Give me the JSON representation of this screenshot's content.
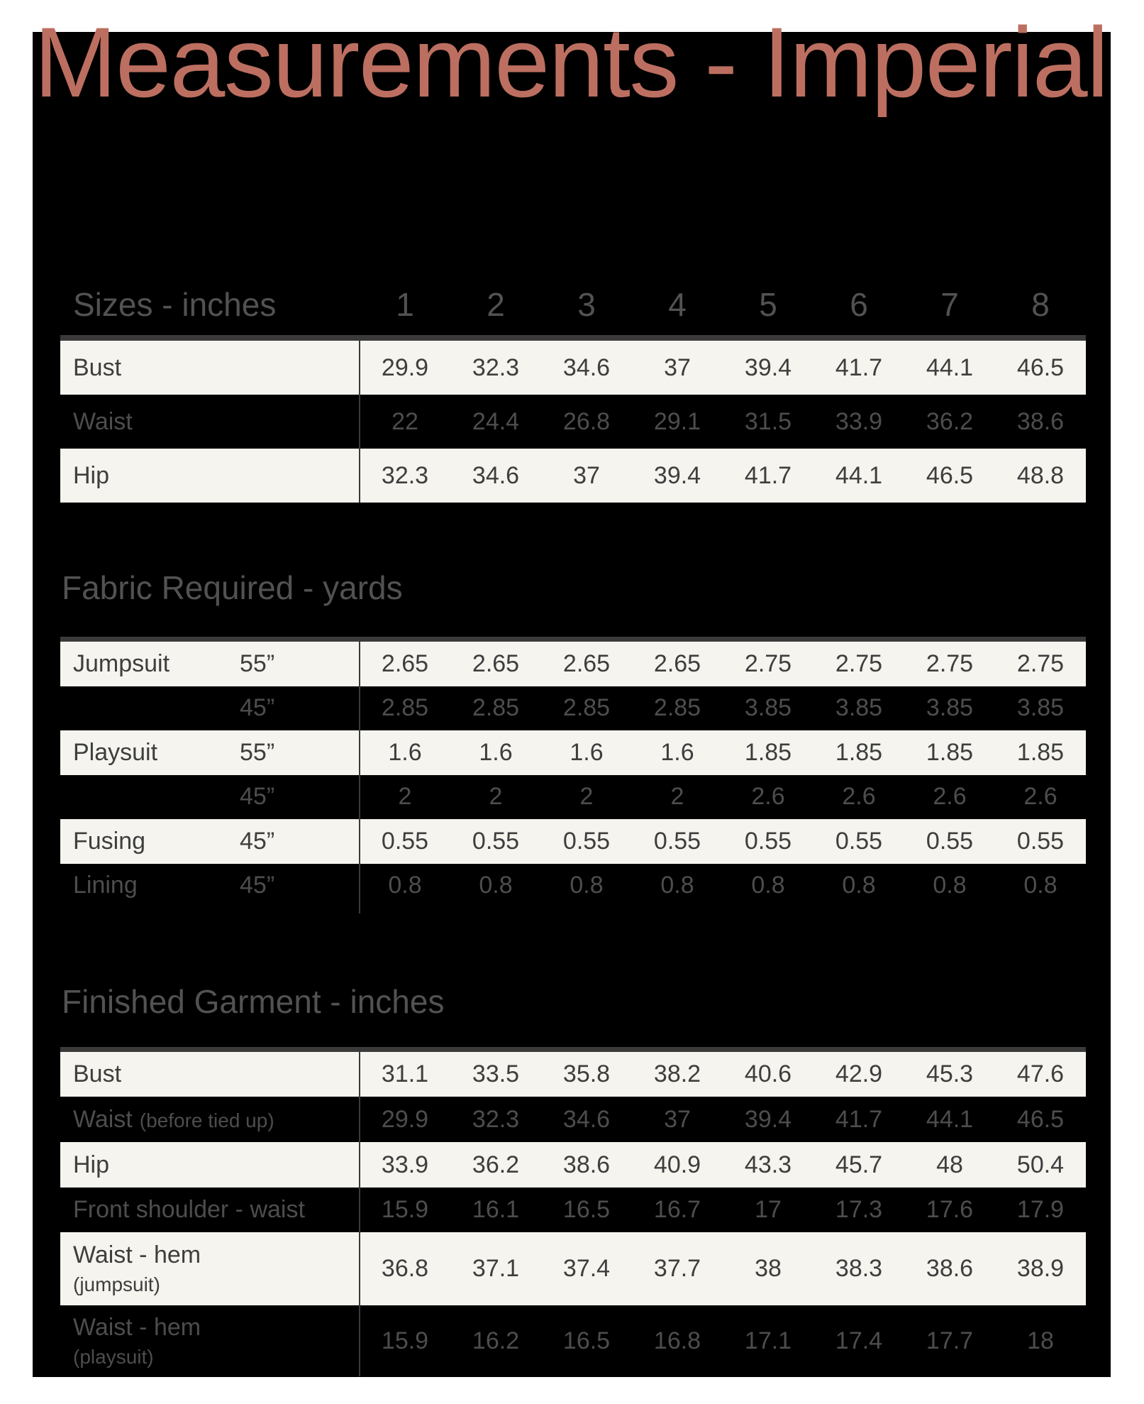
{
  "title": "Measurements - Imperial",
  "colors": {
    "title_accent": "#bc6f60",
    "board_background": "#000000",
    "page_margin": "#ffffff",
    "row_light_background": "#f5f4ee",
    "divider": "#3a3a3a",
    "text_on_light": "#3e3e3e",
    "text_on_dark": "#4d4d4d",
    "heading_text": "#525252"
  },
  "sizes_table": {
    "heading": "Sizes - inches",
    "size_columns": [
      "1",
      "2",
      "3",
      "4",
      "5",
      "6",
      "7",
      "8"
    ],
    "rows": [
      {
        "label": "Bust",
        "values": [
          "29.9",
          "32.3",
          "34.6",
          "37",
          "39.4",
          "41.7",
          "44.1",
          "46.5"
        ]
      },
      {
        "label": "Waist",
        "values": [
          "22",
          "24.4",
          "26.8",
          "29.1",
          "31.5",
          "33.9",
          "36.2",
          "38.6"
        ]
      },
      {
        "label": "Hip",
        "values": [
          "32.3",
          "34.6",
          "37",
          "39.4",
          "41.7",
          "44.1",
          "46.5",
          "48.8"
        ]
      }
    ]
  },
  "fabric_table": {
    "heading": "Fabric Required - yards",
    "rows": [
      {
        "label": "Jumpsuit",
        "width": "55”",
        "values": [
          "2.65",
          "2.65",
          "2.65",
          "2.65",
          "2.75",
          "2.75",
          "2.75",
          "2.75"
        ]
      },
      {
        "label": "",
        "width": "45”",
        "values": [
          "2.85",
          "2.85",
          "2.85",
          "2.85",
          "3.85",
          "3.85",
          "3.85",
          "3.85"
        ]
      },
      {
        "label": "Playsuit",
        "width": "55”",
        "values": [
          "1.6",
          "1.6",
          "1.6",
          "1.6",
          "1.85",
          "1.85",
          "1.85",
          "1.85"
        ]
      },
      {
        "label": "",
        "width": "45”",
        "values": [
          "2",
          "2",
          "2",
          "2",
          "2.6",
          "2.6",
          "2.6",
          "2.6"
        ]
      },
      {
        "label": "Fusing",
        "width": "45”",
        "values": [
          "0.55",
          "0.55",
          "0.55",
          "0.55",
          "0.55",
          "0.55",
          "0.55",
          "0.55"
        ]
      },
      {
        "label": "Lining",
        "width": "45”",
        "values": [
          "0.8",
          "0.8",
          "0.8",
          "0.8",
          "0.8",
          "0.8",
          "0.8",
          "0.8"
        ]
      }
    ]
  },
  "finished_table": {
    "heading": "Finished Garment - inches",
    "rows": [
      {
        "label": "Bust",
        "sub": "",
        "sub_style": "none",
        "values": [
          "31.1",
          "33.5",
          "35.8",
          "38.2",
          "40.6",
          "42.9",
          "45.3",
          "47.6"
        ]
      },
      {
        "label": "Waist",
        "sub": "(before tied up)",
        "sub_style": "inline",
        "values": [
          "29.9",
          "32.3",
          "34.6",
          "37",
          "39.4",
          "41.7",
          "44.1",
          "46.5"
        ]
      },
      {
        "label": "Hip",
        "sub": "",
        "sub_style": "none",
        "values": [
          "33.9",
          "36.2",
          "38.6",
          "40.9",
          "43.3",
          "45.7",
          "48",
          "50.4"
        ]
      },
      {
        "label": "Front shoulder - waist",
        "sub": "",
        "sub_style": "none",
        "values": [
          "15.9",
          "16.1",
          "16.5",
          "16.7",
          "17",
          "17.3",
          "17.6",
          "17.9"
        ]
      },
      {
        "label": "Waist - hem",
        "sub": "(jumpsuit)",
        "sub_style": "stacked",
        "values": [
          "36.8",
          "37.1",
          "37.4",
          "37.7",
          "38",
          "38.3",
          "38.6",
          "38.9"
        ]
      },
      {
        "label": "Waist - hem",
        "sub": "(playsuit)",
        "sub_style": "stacked",
        "values": [
          "15.9",
          "16.2",
          "16.5",
          "16.8",
          "17.1",
          "17.4",
          "17.7",
          "18"
        ]
      }
    ]
  }
}
